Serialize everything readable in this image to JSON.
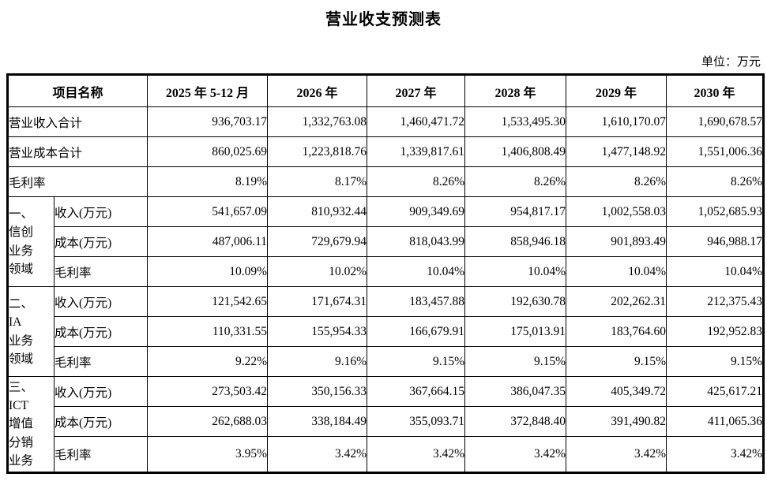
{
  "title": "营业收支预测表",
  "unit_label": "单位：万元",
  "table": {
    "header": {
      "item": "项目名称",
      "periods": [
        "2025 年 5-12 月",
        "2026 年",
        "2027 年",
        "2028 年",
        "2029 年",
        "2030 年"
      ]
    },
    "summary_rows": [
      {
        "label": "营业收入合计",
        "values": [
          "936,703.17",
          "1,332,763.08",
          "1,460,471.72",
          "1,533,495.30",
          "1,610,170.07",
          "1,690,678.57"
        ]
      },
      {
        "label": "营业成本合计",
        "values": [
          "860,025.69",
          "1,223,818.76",
          "1,339,817.61",
          "1,406,808.49",
          "1,477,148.92",
          "1,551,006.36"
        ]
      },
      {
        "label": "毛利率",
        "values": [
          "8.19%",
          "8.17%",
          "8.26%",
          "8.26%",
          "8.26%",
          "8.26%"
        ]
      }
    ],
    "sections": [
      {
        "group": "一、\n信创\n业务\n领域",
        "rows": [
          {
            "label": "收入(万元)",
            "values": [
              "541,657.09",
              "810,932.44",
              "909,349.69",
              "954,817.17",
              "1,002,558.03",
              "1,052,685.93"
            ]
          },
          {
            "label": "成本(万元)",
            "values": [
              "487,006.11",
              "729,679.94",
              "818,043.99",
              "858,946.18",
              "901,893.49",
              "946,988.17"
            ]
          },
          {
            "label": "毛利率",
            "values": [
              "10.09%",
              "10.02%",
              "10.04%",
              "10.04%",
              "10.04%",
              "10.04%"
            ]
          }
        ]
      },
      {
        "group": "二、\nIA\n业务\n领域",
        "rows": [
          {
            "label": "收入(万元)",
            "values": [
              "121,542.65",
              "171,674.31",
              "183,457.88",
              "192,630.78",
              "202,262.31",
              "212,375.43"
            ]
          },
          {
            "label": "成本(万元)",
            "values": [
              "110,331.55",
              "155,954.33",
              "166,679.91",
              "175,013.91",
              "183,764.60",
              "192,952.83"
            ]
          },
          {
            "label": "毛利率",
            "values": [
              "9.22%",
              "9.16%",
              "9.15%",
              "9.15%",
              "9.15%",
              "9.15%"
            ]
          }
        ]
      },
      {
        "group": "三、\nICT\n增值\n分销\n业务",
        "rows": [
          {
            "label": "收入(万元)",
            "values": [
              "273,503.42",
              "350,156.33",
              "367,664.15",
              "386,047.35",
              "405,349.72",
              "425,617.21"
            ]
          },
          {
            "label": "成本(万元)",
            "values": [
              "262,688.03",
              "338,184.49",
              "355,093.71",
              "372,848.40",
              "391,490.82",
              "411,065.36"
            ]
          },
          {
            "label": "毛利率",
            "values": [
              "3.95%",
              "3.42%",
              "3.42%",
              "3.42%",
              "3.42%",
              "3.42%"
            ]
          }
        ]
      }
    ]
  }
}
